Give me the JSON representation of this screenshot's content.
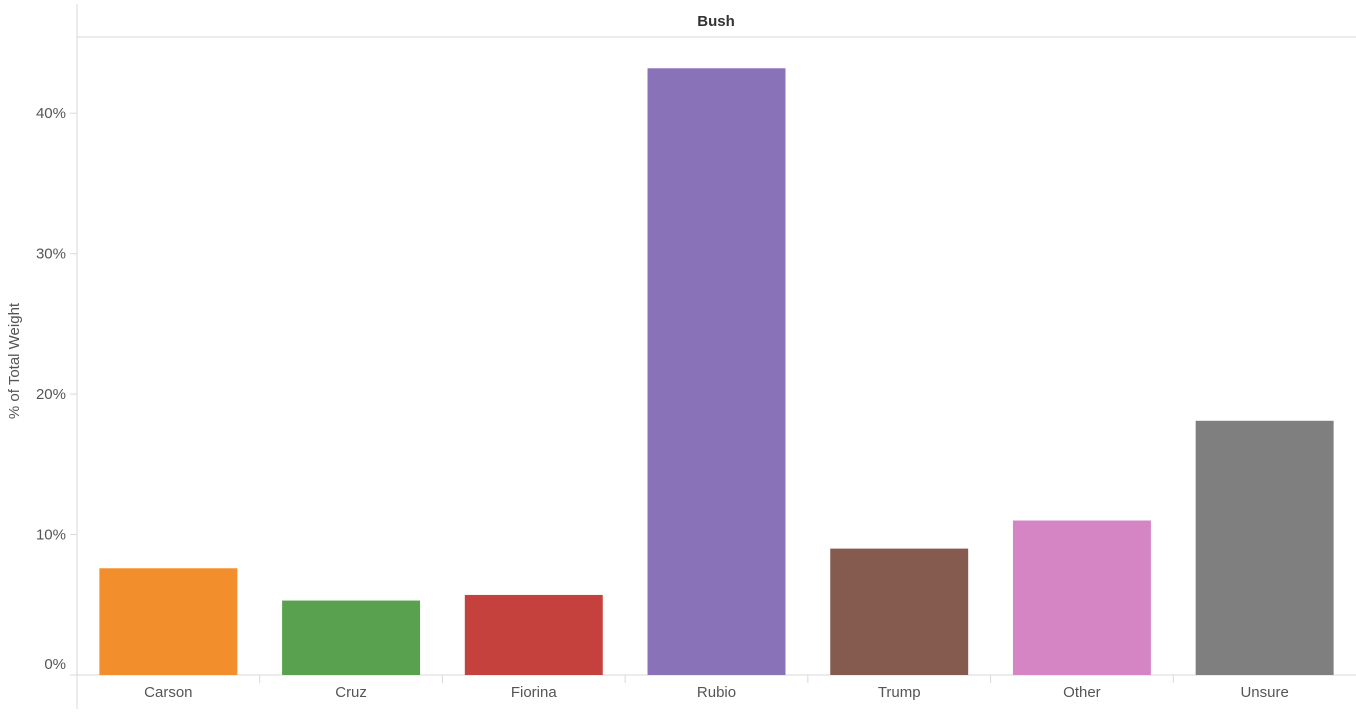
{
  "chart_data": {
    "type": "bar",
    "title": "Bush",
    "ylabel": "% of Total Weight",
    "xlabel": "",
    "categories": [
      "Carson",
      "Cruz",
      "Fiorina",
      "Rubio",
      "Trump",
      "Other",
      "Unsure"
    ],
    "values": [
      7.6,
      5.3,
      5.7,
      43.2,
      9.0,
      11.0,
      18.1
    ],
    "value_unit": "%",
    "colors": [
      "#f28e2b",
      "#59a14f",
      "#c5413d",
      "#8a72b9",
      "#865b4f",
      "#d585c4",
      "#7f7f7f"
    ],
    "ylim": [
      0,
      45
    ],
    "yticks": [
      0,
      10,
      20,
      30,
      40
    ],
    "ytick_labels": [
      "0%",
      "10%",
      "20%",
      "30%",
      "40%"
    ],
    "grid": false,
    "legend": "none"
  }
}
